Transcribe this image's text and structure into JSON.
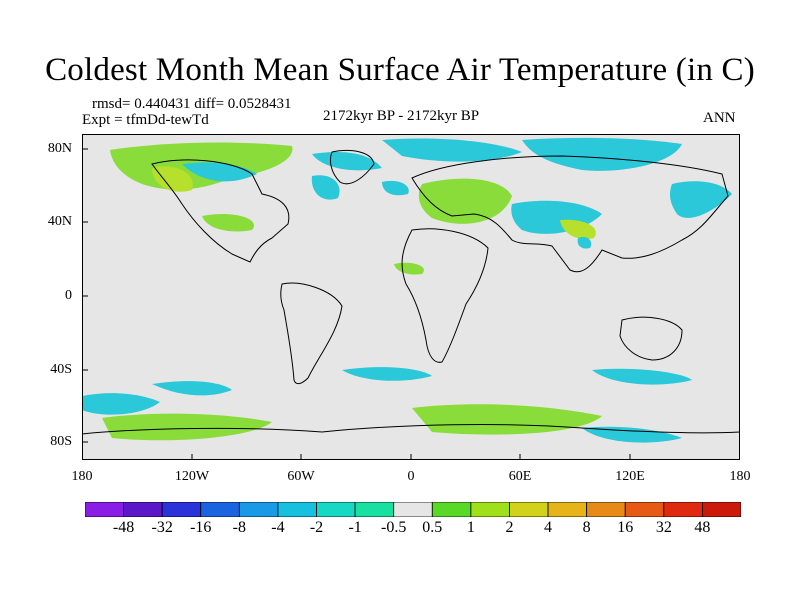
{
  "title": "Coldest Month Mean Surface Air Temperature (in C)",
  "stats_line": "rmsd= 0.440431 diff= 0.0528431",
  "expt_line": "Expt = tfmDd-tewTd",
  "period": "2172kyr BP - 2172kyr BP",
  "season": "ANN",
  "x_ticks": [
    "180",
    "120W",
    "60W",
    "0",
    "60E",
    "120E",
    "180"
  ],
  "y_ticks": [
    "80N",
    "40N",
    "0",
    "40S",
    "80S"
  ],
  "colorbar": {
    "labels": [
      "-48",
      "-32",
      "-16",
      "-8",
      "-4",
      "-2",
      "-1",
      "-0.5",
      "0.5",
      "1",
      "2",
      "4",
      "8",
      "16",
      "32",
      "48"
    ],
    "colors": [
      "#8a1ee6",
      "#5a18c8",
      "#2a34d8",
      "#1a64e0",
      "#1a9ae6",
      "#18c0e0",
      "#16d8c4",
      "#18e0a0",
      "#e6e6e6",
      "#5ad828",
      "#a0e01a",
      "#d2d21a",
      "#e6b418",
      "#e68a18",
      "#e65a16",
      "#e02a10",
      "#cc1a0a"
    ]
  },
  "colors": {
    "background_field": "#e6e6e6",
    "warm_anomaly": "#8adc3a",
    "cool_anomaly": "#2ac8d8"
  }
}
